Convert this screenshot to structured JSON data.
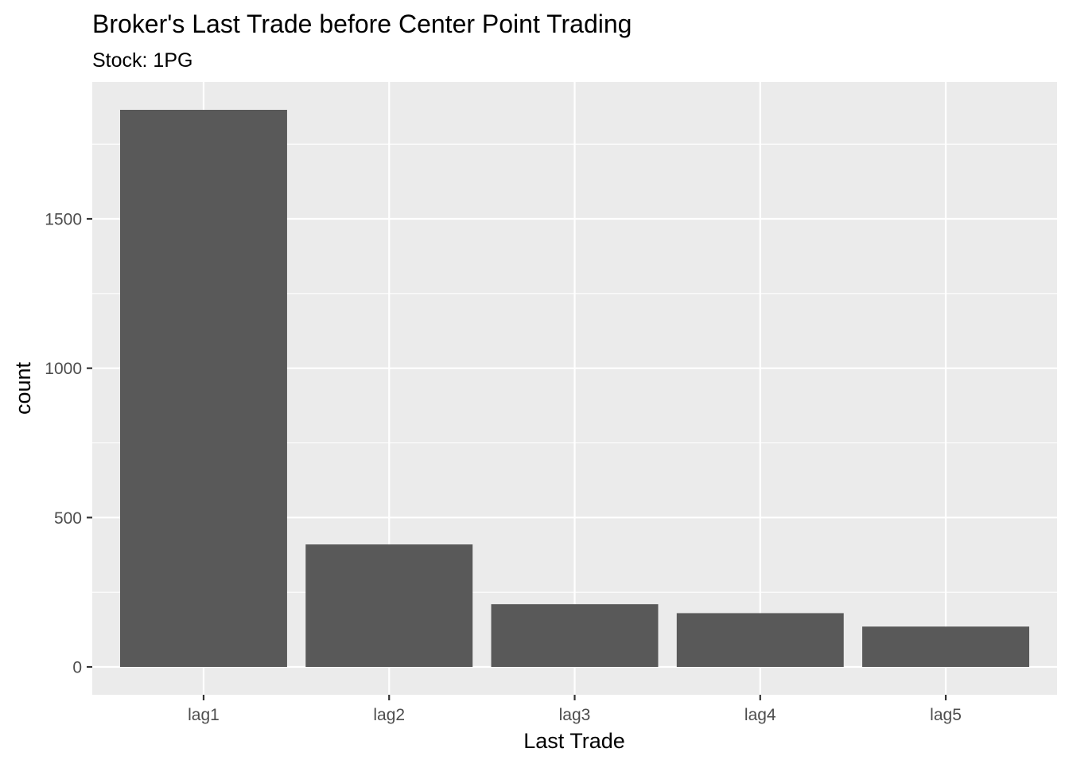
{
  "chart_data": {
    "type": "bar",
    "title": "Broker's Last Trade before Center Point Trading",
    "subtitle": "Stock: 1PG",
    "xlabel": "Last Trade",
    "ylabel": "count",
    "categories": [
      "lag1",
      "lag2",
      "lag3",
      "lag4",
      "lag5"
    ],
    "values": [
      1865,
      410,
      210,
      180,
      135
    ],
    "ylim": [
      -93.25,
      1958.25
    ],
    "yticks": [
      0,
      500,
      1000,
      1500
    ],
    "ytick_labels": [
      "0",
      "500",
      "1000",
      "1500"
    ],
    "grid": true,
    "legend": "none",
    "colors": {
      "panel_background": "#ebebeb",
      "grid_major": "#ffffff",
      "bar_fill": "#595959",
      "tick_text": "#4d4d4d",
      "tick_mark": "#333333"
    }
  }
}
